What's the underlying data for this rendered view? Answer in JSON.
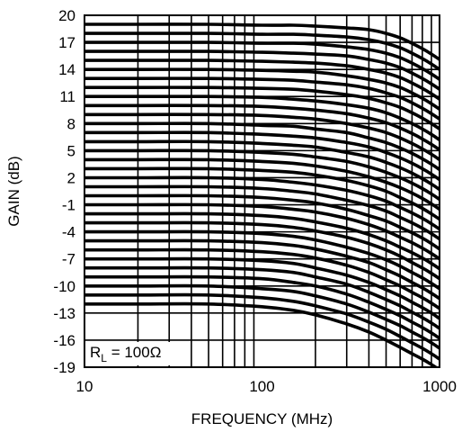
{
  "chart_data": {
    "type": "line",
    "title": "",
    "xlabel": "FREQUENCY (MHz)",
    "ylabel": "GAIN (dB)",
    "x_scale": "log",
    "xlim": [
      10,
      1000
    ],
    "ylim": [
      -19,
      20
    ],
    "grid": true,
    "x_ticks": [
      "10",
      "100",
      "1000"
    ],
    "y_ticks": [
      "20",
      "17",
      "14",
      "11",
      "8",
      "5",
      "2",
      "-1",
      "-4",
      "-7",
      "-10",
      "-13",
      "-16",
      "-19"
    ],
    "annotation": {
      "base": "R",
      "sub": "L",
      "rest": " = 100Ω"
    },
    "x": [
      10,
      20,
      50,
      100,
      150,
      200,
      300,
      400,
      500,
      600,
      700,
      800,
      900,
      1000
    ],
    "series": [
      {
        "dc_gain": 19.0,
        "values": [
          19.0,
          19.0,
          19.0,
          18.9,
          18.9,
          18.8,
          18.6,
          18.4,
          18.0,
          17.5,
          16.9,
          16.3,
          15.7,
          15.1
        ]
      },
      {
        "dc_gain": 18.0,
        "values": [
          18.0,
          18.0,
          18.0,
          17.9,
          17.9,
          17.8,
          17.6,
          17.3,
          16.9,
          16.4,
          15.8,
          15.2,
          14.6,
          14.0
        ]
      },
      {
        "dc_gain": 17.0,
        "values": [
          17.0,
          17.0,
          17.0,
          16.9,
          16.9,
          16.8,
          16.5,
          16.2,
          15.8,
          15.3,
          14.7,
          14.1,
          13.5,
          12.9
        ]
      },
      {
        "dc_gain": 16.0,
        "values": [
          16.0,
          16.0,
          16.0,
          15.9,
          15.8,
          15.7,
          15.5,
          15.1,
          14.7,
          14.2,
          13.6,
          13.0,
          12.4,
          11.8
        ]
      },
      {
        "dc_gain": 15.0,
        "values": [
          15.0,
          15.0,
          15.0,
          14.9,
          14.8,
          14.7,
          14.4,
          14.0,
          13.6,
          13.1,
          12.5,
          11.9,
          11.3,
          10.7
        ]
      },
      {
        "dc_gain": 14.0,
        "values": [
          14.0,
          14.0,
          14.0,
          13.9,
          13.8,
          13.7,
          13.3,
          12.9,
          12.5,
          12.0,
          11.4,
          10.8,
          10.2,
          9.6
        ]
      },
      {
        "dc_gain": 13.0,
        "values": [
          13.0,
          13.0,
          13.0,
          12.9,
          12.8,
          12.6,
          12.3,
          11.9,
          11.4,
          10.9,
          10.3,
          9.7,
          9.1,
          8.5
        ]
      },
      {
        "dc_gain": 12.0,
        "values": [
          12.0,
          12.0,
          12.0,
          11.9,
          11.8,
          11.6,
          11.2,
          10.8,
          10.3,
          9.8,
          9.2,
          8.6,
          8.0,
          7.4
        ]
      },
      {
        "dc_gain": 11.0,
        "values": [
          11.0,
          11.0,
          11.0,
          10.9,
          10.7,
          10.5,
          10.1,
          9.7,
          9.2,
          8.6,
          8.0,
          7.4,
          6.8,
          6.2
        ]
      },
      {
        "dc_gain": 10.0,
        "values": [
          10.0,
          10.0,
          10.0,
          9.9,
          9.7,
          9.5,
          9.1,
          8.6,
          8.1,
          7.5,
          6.9,
          6.3,
          5.7,
          5.1
        ]
      },
      {
        "dc_gain": 9.0,
        "values": [
          9.0,
          9.0,
          9.0,
          8.9,
          8.7,
          8.5,
          8.0,
          7.5,
          7.0,
          6.4,
          5.8,
          5.2,
          4.6,
          4.0
        ]
      },
      {
        "dc_gain": 8.0,
        "values": [
          8.0,
          8.0,
          8.0,
          7.8,
          7.7,
          7.4,
          7.0,
          6.4,
          5.9,
          5.3,
          4.7,
          4.1,
          3.5,
          2.9
        ]
      },
      {
        "dc_gain": 7.0,
        "values": [
          7.0,
          7.0,
          7.0,
          6.8,
          6.6,
          6.4,
          5.9,
          5.4,
          4.8,
          4.2,
          3.6,
          3.0,
          2.4,
          1.8
        ]
      },
      {
        "dc_gain": 6.0,
        "values": [
          6.0,
          6.0,
          6.0,
          5.8,
          5.6,
          5.4,
          4.8,
          4.3,
          3.7,
          3.1,
          2.5,
          1.9,
          1.3,
          0.7
        ]
      },
      {
        "dc_gain": 5.0,
        "values": [
          5.0,
          5.0,
          5.0,
          4.8,
          4.6,
          4.3,
          3.8,
          3.2,
          2.6,
          2.0,
          1.4,
          0.8,
          0.2,
          -0.4
        ]
      },
      {
        "dc_gain": 4.0,
        "values": [
          4.0,
          4.0,
          4.0,
          3.8,
          3.6,
          3.3,
          2.7,
          2.1,
          1.5,
          0.9,
          0.3,
          -0.3,
          -0.9,
          -1.5
        ]
      },
      {
        "dc_gain": 3.0,
        "values": [
          3.0,
          3.0,
          3.0,
          2.8,
          2.6,
          2.3,
          1.7,
          1.1,
          0.5,
          -0.2,
          -0.8,
          -1.4,
          -2.0,
          -2.6
        ]
      },
      {
        "dc_gain": 2.0,
        "values": [
          2.0,
          2.0,
          2.0,
          1.8,
          1.5,
          1.2,
          0.6,
          0.0,
          -0.6,
          -1.3,
          -1.9,
          -2.5,
          -3.1,
          -3.7
        ]
      },
      {
        "dc_gain": 1.0,
        "values": [
          1.0,
          1.0,
          1.0,
          0.8,
          0.5,
          0.2,
          -0.5,
          -1.1,
          -1.7,
          -2.4,
          -3.0,
          -3.6,
          -4.2,
          -4.8
        ]
      },
      {
        "dc_gain": 0.0,
        "values": [
          0.0,
          0.0,
          0.0,
          -0.2,
          -0.5,
          -0.8,
          -1.5,
          -2.2,
          -2.8,
          -3.5,
          -4.1,
          -4.7,
          -5.3,
          -5.9
        ]
      },
      {
        "dc_gain": -1.0,
        "values": [
          -1.0,
          -1.0,
          -1.0,
          -1.2,
          -1.5,
          -1.8,
          -2.5,
          -3.2,
          -3.9,
          -4.6,
          -5.2,
          -5.8,
          -6.4,
          -7.0
        ]
      },
      {
        "dc_gain": -2.0,
        "values": [
          -2.0,
          -2.0,
          -2.0,
          -2.2,
          -2.5,
          -2.9,
          -3.6,
          -4.3,
          -5.0,
          -5.7,
          -6.3,
          -6.9,
          -7.5,
          -8.1
        ]
      },
      {
        "dc_gain": -3.0,
        "values": [
          -3.0,
          -3.0,
          -3.0,
          -3.2,
          -3.5,
          -3.9,
          -4.6,
          -5.3,
          -6.0,
          -6.7,
          -7.4,
          -8.0,
          -8.6,
          -9.2
        ]
      },
      {
        "dc_gain": -4.0,
        "values": [
          -4.0,
          -4.0,
          -4.0,
          -4.2,
          -4.5,
          -4.9,
          -5.7,
          -6.4,
          -7.1,
          -7.8,
          -8.5,
          -9.1,
          -9.7,
          -10.3
        ]
      },
      {
        "dc_gain": -5.0,
        "values": [
          -5.0,
          -5.0,
          -5.0,
          -5.2,
          -5.5,
          -5.9,
          -6.7,
          -7.4,
          -8.2,
          -8.9,
          -9.6,
          -10.2,
          -10.8,
          -11.4
        ]
      },
      {
        "dc_gain": -6.0,
        "values": [
          -6.0,
          -6.0,
          -6.0,
          -6.2,
          -6.5,
          -6.9,
          -7.7,
          -8.5,
          -9.3,
          -10.0,
          -10.7,
          -11.3,
          -11.9,
          -12.5
        ]
      },
      {
        "dc_gain": -7.0,
        "values": [
          -7.0,
          -7.0,
          -7.0,
          -7.2,
          -7.5,
          -8.0,
          -8.8,
          -9.6,
          -10.4,
          -11.1,
          -11.8,
          -12.4,
          -13.0,
          -13.6
        ]
      },
      {
        "dc_gain": -8.0,
        "values": [
          -8.0,
          -8.0,
          -8.0,
          -8.2,
          -8.5,
          -9.0,
          -9.8,
          -10.7,
          -11.5,
          -12.2,
          -12.9,
          -13.5,
          -14.1,
          -14.7
        ]
      },
      {
        "dc_gain": -9.0,
        "values": [
          -9.0,
          -9.0,
          -9.0,
          -9.2,
          -9.6,
          -10.0,
          -10.9,
          -11.8,
          -12.6,
          -13.3,
          -14.0,
          -14.6,
          -15.2,
          -15.8
        ]
      },
      {
        "dc_gain": -10.0,
        "values": [
          -10.0,
          -10.0,
          -10.0,
          -10.3,
          -10.6,
          -11.1,
          -12.0,
          -12.9,
          -13.7,
          -14.4,
          -15.1,
          -15.7,
          -16.3,
          -16.9
        ]
      },
      {
        "dc_gain": -11.0,
        "values": [
          -11.0,
          -11.0,
          -11.0,
          -11.3,
          -11.7,
          -12.2,
          -13.1,
          -14.0,
          -14.8,
          -15.6,
          -16.3,
          -16.9,
          -17.5,
          -18.1
        ]
      },
      {
        "dc_gain": -12.0,
        "values": [
          -12.0,
          -12.0,
          -12.0,
          -12.3,
          -12.7,
          -13.2,
          -14.2,
          -15.1,
          -16.0,
          -16.8,
          -17.5,
          -18.1,
          -18.7,
          -19.3
        ]
      }
    ]
  }
}
